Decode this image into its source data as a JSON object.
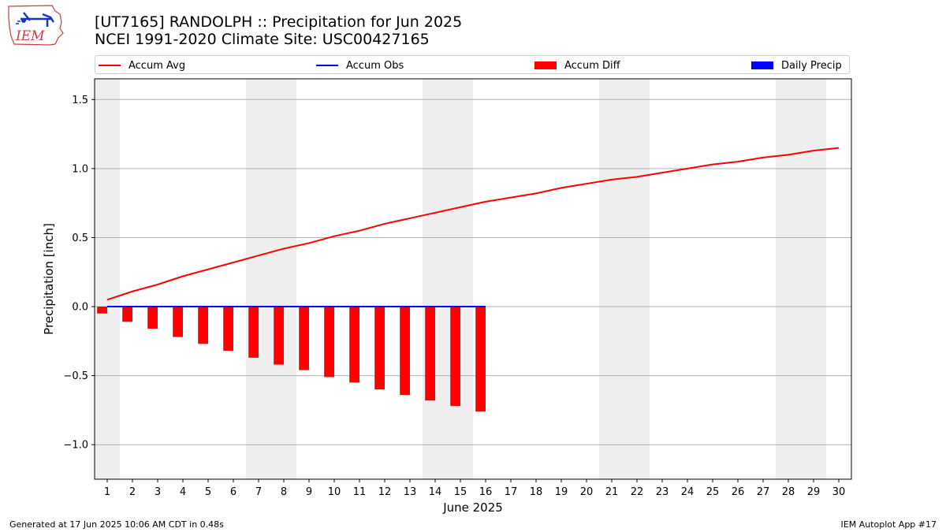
{
  "header": {
    "title": "[UT7165] RANDOLPH :: Precipitation for Jun 2025",
    "subtitle": "NCEI 1991-2020 Climate Site: USC00427165",
    "logo_text": "IEM"
  },
  "legend": [
    {
      "label": "Accum Avg",
      "kind": "line",
      "color": "#ff0000"
    },
    {
      "label": "Accum Obs",
      "kind": "line",
      "color": "#0000ff"
    },
    {
      "label": "Accum Diff",
      "kind": "box",
      "color": "#ff0000"
    },
    {
      "label": "Daily Precip",
      "kind": "box",
      "color": "#0000ff"
    }
  ],
  "footer": {
    "generated": "Generated at 17 Jun 2025 10:06 AM CDT in 0.48s",
    "app": "IEM Autoplot App #17"
  },
  "chart_data": {
    "type": "bar",
    "xlabel": "June 2025",
    "ylabel": "Precipitation [inch]",
    "xlim": [
      0.5,
      30.5
    ],
    "ylim": [
      -1.25,
      1.65
    ],
    "yticks": [
      -1.0,
      -0.5,
      0.0,
      0.5,
      1.0,
      1.5
    ],
    "ytick_labels": [
      "−1.0",
      "−0.5",
      "0.0",
      "0.5",
      "1.0",
      "1.5"
    ],
    "xticks": [
      1,
      2,
      3,
      4,
      5,
      6,
      7,
      8,
      9,
      10,
      11,
      12,
      13,
      14,
      15,
      16,
      17,
      18,
      19,
      20,
      21,
      22,
      23,
      24,
      25,
      26,
      27,
      28,
      29,
      30
    ],
    "weekend_shading": [
      [
        0.5,
        1.5
      ],
      [
        6.5,
        8.5
      ],
      [
        13.5,
        15.5
      ],
      [
        20.5,
        22.5
      ],
      [
        27.5,
        29.5
      ]
    ],
    "grid": "horizontal",
    "legend_position": "top",
    "series": [
      {
        "name": "Accum Avg",
        "type": "line",
        "color": "#ff0000",
        "x": [
          1,
          2,
          3,
          4,
          5,
          6,
          7,
          8,
          9,
          10,
          11,
          12,
          13,
          14,
          15,
          16,
          17,
          18,
          19,
          20,
          21,
          22,
          23,
          24,
          25,
          26,
          27,
          28,
          29,
          30
        ],
        "values": [
          0.05,
          0.11,
          0.16,
          0.22,
          0.27,
          0.32,
          0.37,
          0.42,
          0.46,
          0.51,
          0.55,
          0.6,
          0.64,
          0.68,
          0.72,
          0.76,
          0.79,
          0.82,
          0.86,
          0.89,
          0.92,
          0.94,
          0.97,
          1.0,
          1.03,
          1.05,
          1.08,
          1.1,
          1.13,
          1.15
        ]
      },
      {
        "name": "Accum Obs",
        "type": "line",
        "color": "#0000ff",
        "x": [
          1,
          2,
          3,
          4,
          5,
          6,
          7,
          8,
          9,
          10,
          11,
          12,
          13,
          14,
          15,
          16
        ],
        "values": [
          0,
          0,
          0,
          0,
          0,
          0,
          0,
          0,
          0,
          0,
          0,
          0,
          0,
          0,
          0,
          0
        ]
      },
      {
        "name": "Accum Diff",
        "type": "bar",
        "color": "#ff0000",
        "x": [
          1,
          2,
          3,
          4,
          5,
          6,
          7,
          8,
          9,
          10,
          11,
          12,
          13,
          14,
          15,
          16
        ],
        "values": [
          -0.05,
          -0.11,
          -0.16,
          -0.22,
          -0.27,
          -0.32,
          -0.37,
          -0.42,
          -0.46,
          -0.51,
          -0.55,
          -0.6,
          -0.64,
          -0.68,
          -0.72,
          -0.76
        ]
      },
      {
        "name": "Daily Precip",
        "type": "bar",
        "color": "#0000ff",
        "x": [
          1,
          2,
          3,
          4,
          5,
          6,
          7,
          8,
          9,
          10,
          11,
          12,
          13,
          14,
          15,
          16
        ],
        "values": [
          0,
          0,
          0,
          0,
          0,
          0,
          0,
          0,
          0,
          0,
          0,
          0,
          0,
          0,
          0,
          0
        ]
      }
    ]
  }
}
